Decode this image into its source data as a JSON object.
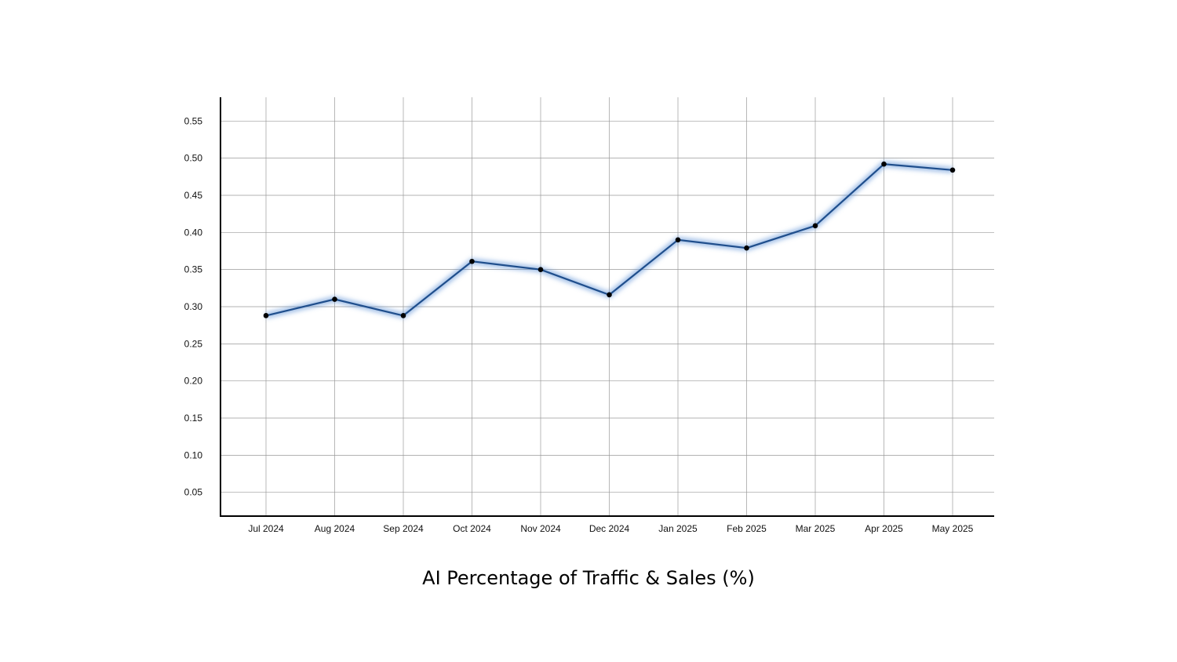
{
  "chart_data": {
    "type": "line",
    "title": "AI Percentage of Traffic & Sales (%)",
    "xlabel": "",
    "ylabel": "",
    "categories": [
      "Jul 2024",
      "Aug 2024",
      "Sep 2024",
      "Oct 2024",
      "Nov 2024",
      "Dec 2024",
      "Jan 2025",
      "Feb 2025",
      "Mar 2025",
      "Apr 2025",
      "May 2025"
    ],
    "series": [
      {
        "name": "AI Percentage of Traffic & Sales",
        "values": [
          0.288,
          0.31,
          0.288,
          0.361,
          0.35,
          0.316,
          0.39,
          0.379,
          0.409,
          0.492,
          0.484
        ]
      }
    ],
    "yticks": [
      "0.05",
      "0.10",
      "0.15",
      "0.20",
      "0.25",
      "0.30",
      "0.35",
      "0.40",
      "0.45",
      "0.50",
      "0.55"
    ],
    "ylim": [
      0.018,
      0.582
    ],
    "grid": true,
    "legend": "none",
    "colors": {
      "line": "#1f4e8c",
      "glow": "#5b8fd6",
      "marker": "#000000",
      "grid": "#9a9a9a",
      "axis": "#000000"
    }
  }
}
